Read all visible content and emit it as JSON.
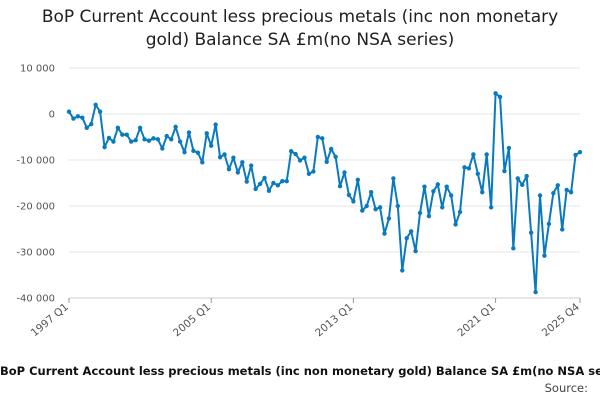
{
  "chart_data": {
    "type": "line",
    "title_line1": "BoP Current Account less precious metals (inc non monetary",
    "title_line2": "gold) Balance SA £m(no NSA series)",
    "xlabel": "BoP Current Account less precious metals (inc non monetary gold) Balance SA £m(no NSA series)",
    "source": "Source:",
    "ylim": [
      -40000,
      10000
    ],
    "yticks": [
      10000,
      0,
      -10000,
      -20000,
      -30000,
      -40000
    ],
    "ytick_labels": [
      "10 000",
      "0",
      "-10 000",
      "-20 000",
      "-30 000",
      "-40 000"
    ],
    "xtick_labels": [
      "1997 Q1",
      "2005 Q1",
      "2013 Q1",
      "2021 Q1",
      "2025 Q4"
    ],
    "xtick_index": [
      0,
      32,
      64,
      96,
      115
    ],
    "color": "#0a7abf",
    "grid": true,
    "legend": "none",
    "series": [
      {
        "x_start": "1997 Q1",
        "frequency": "quarterly",
        "values": [
          500,
          -1000,
          -500,
          -800,
          -3000,
          -2200,
          2000,
          500,
          -7200,
          -5200,
          -6000,
          -3000,
          -4500,
          -4500,
          -6000,
          -5700,
          -3000,
          -5500,
          -5800,
          -5300,
          -5500,
          -7500,
          -4800,
          -5500,
          -2800,
          -6000,
          -8300,
          -4000,
          -8000,
          -8400,
          -10500,
          -4200,
          -6900,
          -2300,
          -9400,
          -8800,
          -12000,
          -9500,
          -12700,
          -10500,
          -14700,
          -11200,
          -16300,
          -15200,
          -13900,
          -16700,
          -15000,
          -15500,
          -14600,
          -14600,
          -8100,
          -8700,
          -10100,
          -9500,
          -13000,
          -12500,
          -5000,
          -5300,
          -10400,
          -7600,
          -9300,
          -15700,
          -12700,
          -17600,
          -19000,
          -14300,
          -21000,
          -20000,
          -17000,
          -20700,
          -20300,
          -26000,
          -22700,
          -14000,
          -20000,
          -34000,
          -27000,
          -25500,
          -29800,
          -21500,
          -15800,
          -22200,
          -16800,
          -15300,
          -20300,
          -15800,
          -17700,
          -24000,
          -21300,
          -11600,
          -11800,
          -8800,
          -13000,
          -17000,
          -8800,
          -20300,
          4500,
          3700,
          -12400,
          -7400,
          -29200,
          -14000,
          -15400,
          -13500,
          -25800,
          -38700,
          -17700,
          -30800,
          -23900,
          -17200,
          -15500,
          -25100,
          -16500,
          -17000,
          -8900,
          -8300
        ]
      }
    ]
  }
}
